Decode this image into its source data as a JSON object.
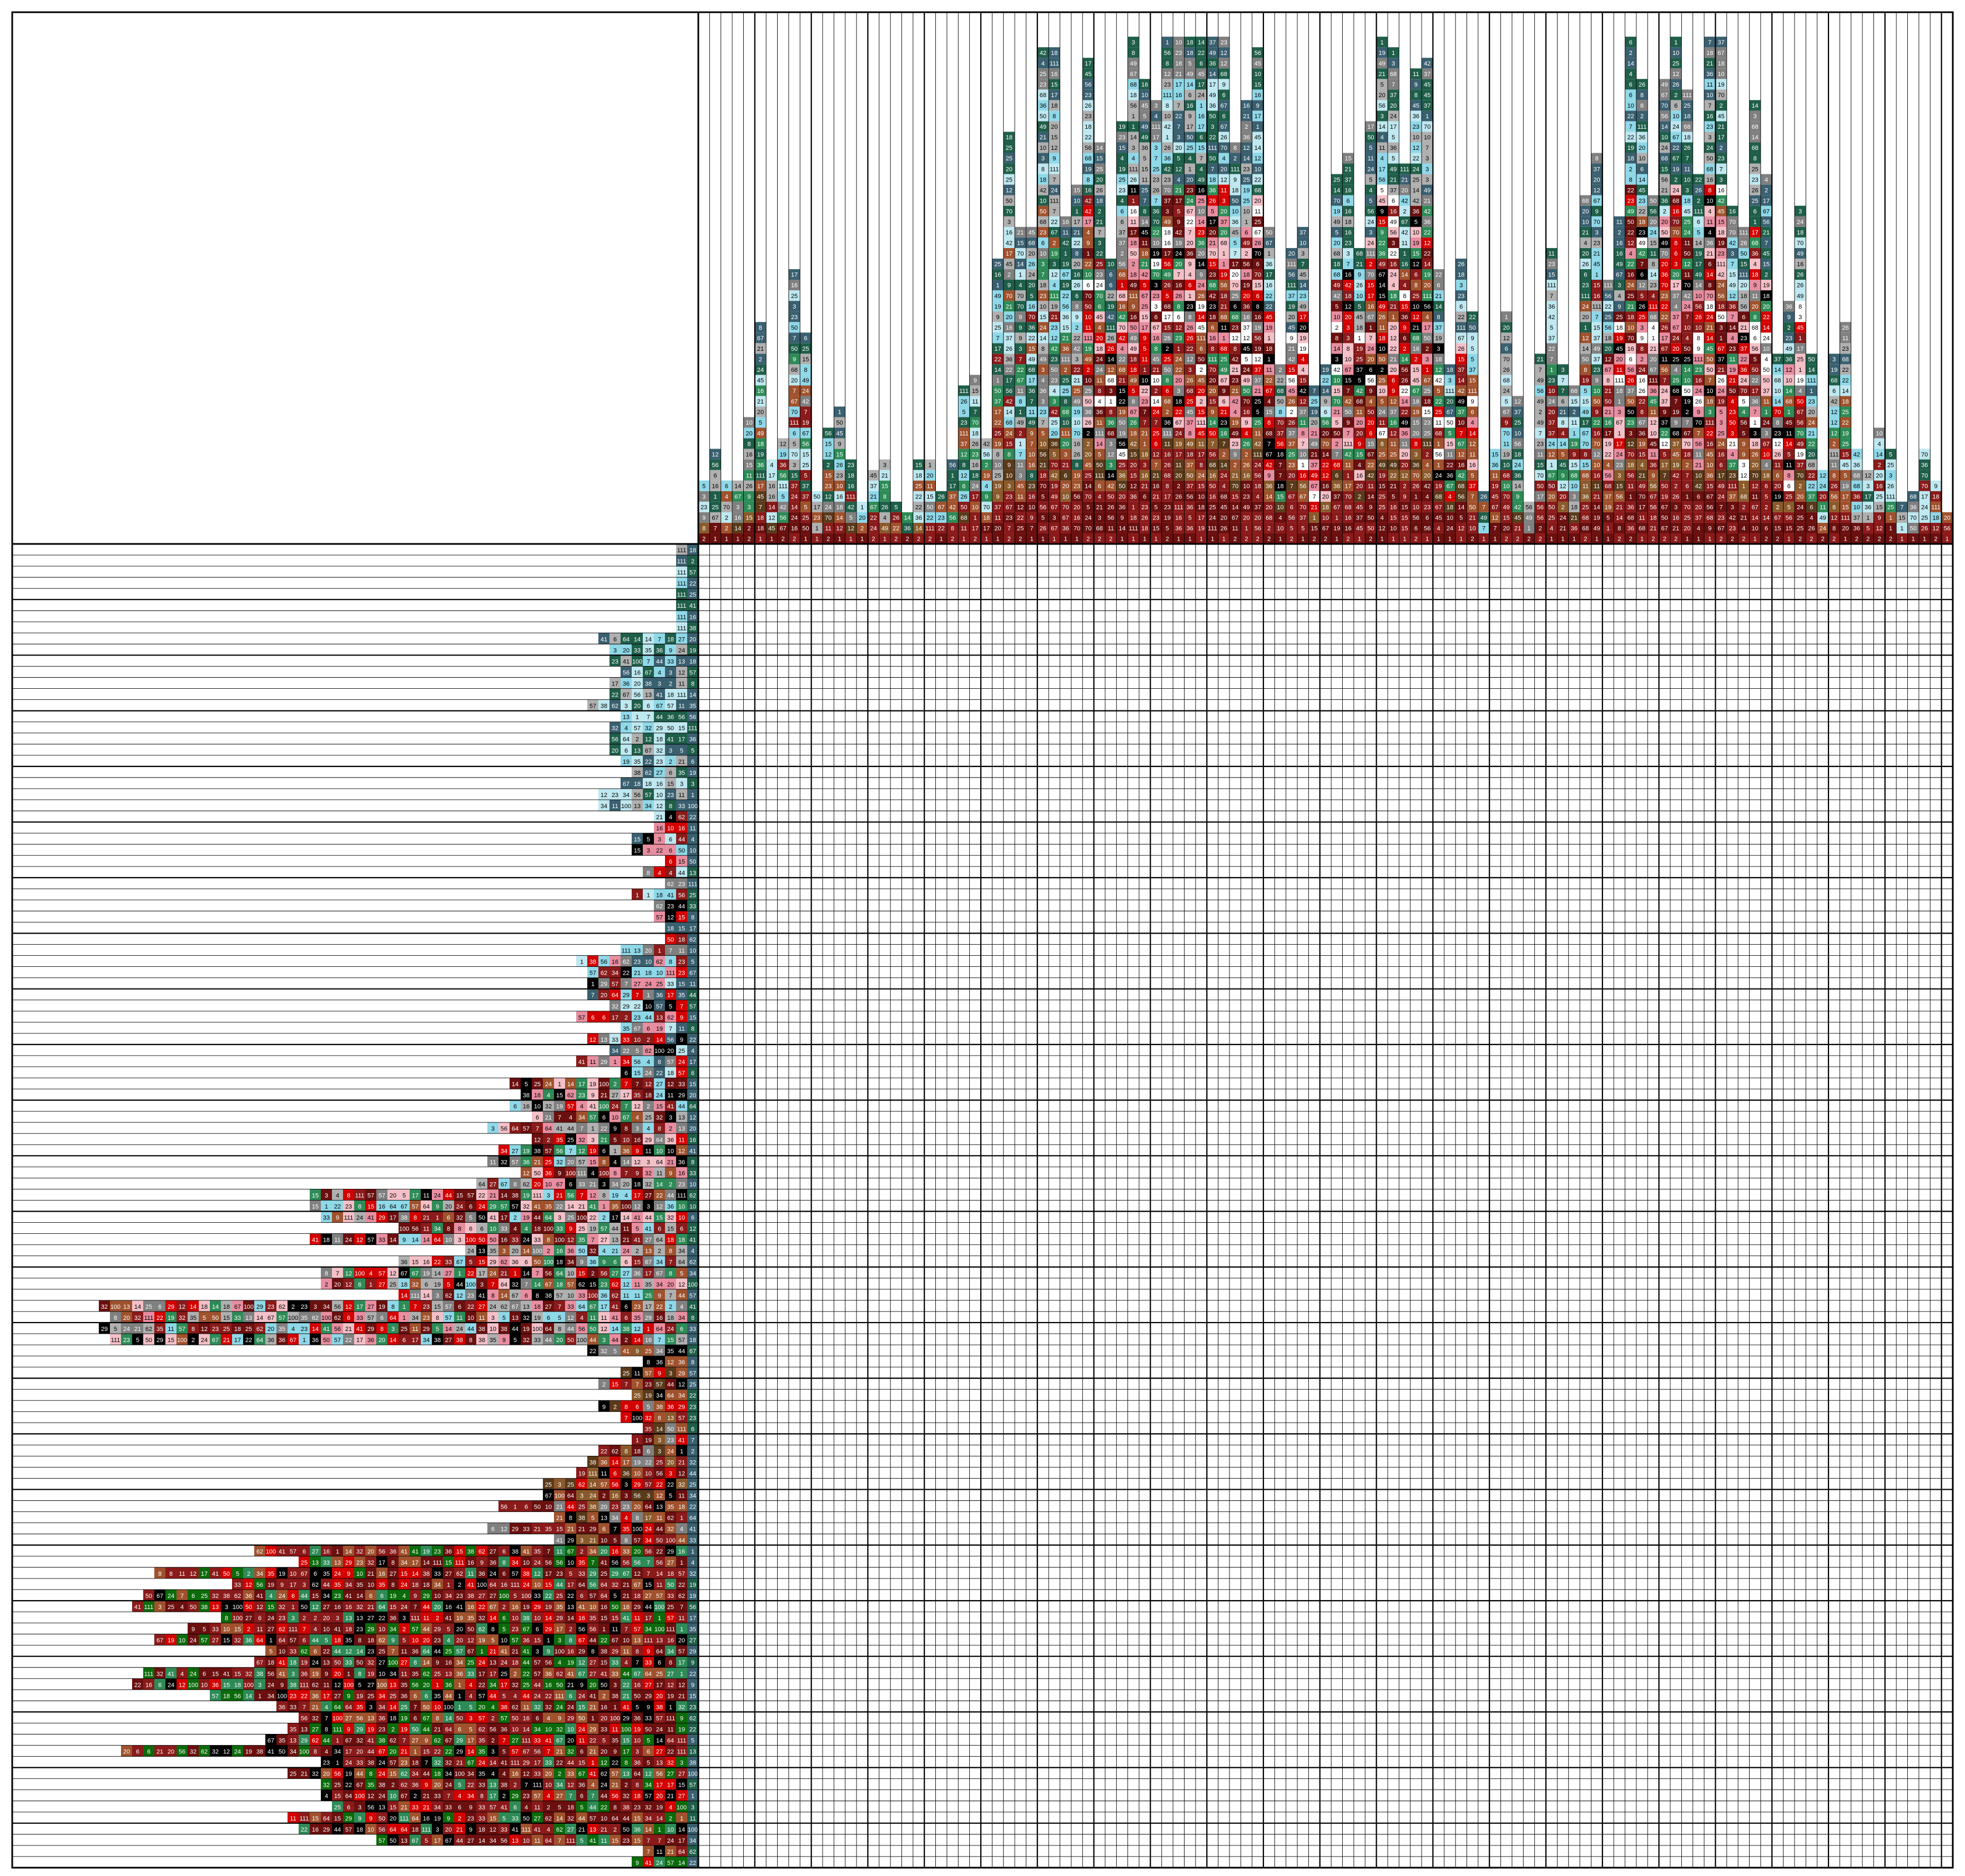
{
  "puzzle": {
    "type": "color-nonogram",
    "grid_cols": 111,
    "grid_rows": 119,
    "palette": [
      "#8b1a1a",
      "#6b0f0f",
      "#d40000",
      "#a0522d",
      "#8b5a2b",
      "#1f5f4a",
      "#2e8b57",
      "#0b6b0b",
      "#8fd8e8",
      "#bfe8f0",
      "#e88ea0",
      "#f4c0c8",
      "#808080",
      "#b0b0b0",
      "#000000",
      "#ffffff",
      "#5a3a1a",
      "#3a6070"
    ],
    "column_clue_samples": [
      "15",
      "45",
      "49",
      "1",
      "2",
      "17",
      "3",
      "12",
      "18",
      "42",
      "20",
      "11",
      "23",
      "22",
      "25",
      "9",
      "10",
      "5",
      "4",
      "8",
      "14",
      "6",
      "7",
      "16",
      "19",
      "21",
      "24",
      "26",
      "36",
      "37",
      "50",
      "56",
      "67",
      "68",
      "70",
      "111"
    ],
    "row_clue_samples": [
      "111",
      "1",
      "10",
      "3",
      "15",
      "5",
      "13",
      "67",
      "4",
      "20",
      "9",
      "44",
      "2",
      "21",
      "14",
      "38",
      "12",
      "36",
      "35",
      "34",
      "33",
      "19",
      "25",
      "17",
      "18",
      "41",
      "16",
      "22",
      "23",
      "24",
      "11",
      "27",
      "29",
      "32",
      "6",
      "7",
      "8",
      "100",
      "50",
      "56",
      "57",
      "64",
      "62"
    ]
  }
}
